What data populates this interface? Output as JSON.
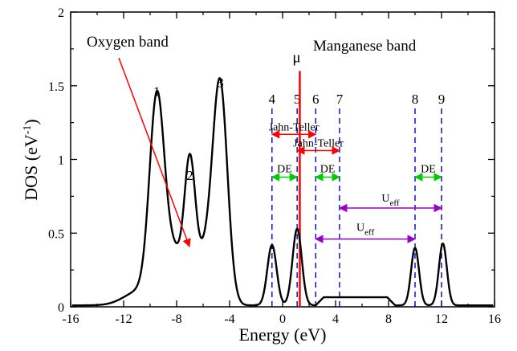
{
  "chart_data": {
    "type": "line",
    "xlabel": "Energy (eV)",
    "ylabel_main": "DOS (eV",
    "ylabel_sup": "-1",
    "ylabel_close": ")",
    "xlim": [
      -16,
      16
    ],
    "ylim": [
      0,
      2
    ],
    "xticks": [
      -16,
      -12,
      -8,
      -4,
      0,
      4,
      8,
      12,
      16
    ],
    "xtick_labels": [
      "-16",
      "-12",
      "-8",
      "-4",
      "0",
      "4",
      "8",
      "12",
      "16"
    ],
    "yticks": [
      0,
      0.5,
      1,
      1.5,
      2
    ],
    "ytick_labels": [
      "0",
      "0.5",
      "1",
      "1.5",
      "2"
    ],
    "series": [
      {
        "color": "#000000",
        "peaks": [
          {
            "x": -9.5,
            "h": 1.3,
            "w": 0.55
          },
          {
            "x": -10.7,
            "h": 0.1,
            "w": 1.2
          },
          {
            "x": -7.0,
            "h": 0.8,
            "w": 0.4
          },
          {
            "x": -8.2,
            "h": 0.35,
            "w": 0.8
          },
          {
            "x": -4.7,
            "h": 1.4,
            "w": 0.55
          },
          {
            "x": -5.8,
            "h": 0.35,
            "w": 0.8
          },
          {
            "x": -0.8,
            "h": 0.41,
            "w": 0.35
          },
          {
            "x": 1.1,
            "h": 0.52,
            "w": 0.35
          },
          {
            "x": 10.0,
            "h": 0.39,
            "w": 0.3
          },
          {
            "x": 12.1,
            "h": 0.42,
            "w": 0.3
          }
        ],
        "plateau": {
          "from": 2.5,
          "to": 8.5,
          "level": 0.055
        },
        "baseline": 0.01
      }
    ],
    "vlines": [
      {
        "label": "4",
        "x": -0.8
      },
      {
        "label": "5",
        "x": 1.1
      },
      {
        "label": "6",
        "x": 2.5
      },
      {
        "label": "7",
        "x": 4.3
      },
      {
        "label": "8",
        "x": 10.0
      },
      {
        "label": "9",
        "x": 12.0
      }
    ],
    "mu": {
      "label": "μ",
      "x": 1.3
    },
    "peak_labels": [
      {
        "label": "1",
        "x": -9.5,
        "y": 1.43
      },
      {
        "label": "2",
        "x": -7.0,
        "y": 0.86
      },
      {
        "label": "3",
        "x": -4.7,
        "y": 1.49
      }
    ],
    "annotations": {
      "oxygen_band": "Oxygen band",
      "manganese_band": "Manganese band",
      "jahn_teller_1": "Jahn-Teller",
      "jahn_teller_2": "Jahn-Teller",
      "de_1": "DE",
      "de_2": "DE",
      "de_3": "DE",
      "ueff_1_main": "U",
      "ueff_1_sub": "eff",
      "ueff_2_main": "U",
      "ueff_2_sub": "eff"
    },
    "arrows": {
      "jahn_teller_1": {
        "from": -0.8,
        "to": 2.5,
        "y": 1.17
      },
      "jahn_teller_2": {
        "from": 1.1,
        "to": 4.3,
        "y": 1.06
      },
      "de_1": {
        "from": -0.8,
        "to": 1.1,
        "y": 0.88
      },
      "de_2": {
        "from": 2.5,
        "to": 4.3,
        "y": 0.88
      },
      "de_3": {
        "from": 10.0,
        "to": 12.0,
        "y": 0.88
      },
      "ueff_1": {
        "from": 4.3,
        "to": 12.0,
        "y": 0.67
      },
      "ueff_2": {
        "from": 2.5,
        "to": 10.0,
        "y": 0.46
      }
    },
    "colors": {
      "curve": "#000000",
      "dashed": "#0000cc",
      "mu_line": "#ff0000",
      "jahn_teller": "#ff0000",
      "de": "#00cc00",
      "ueff": "#9900cc",
      "oxygen_arrow": "#ff0000"
    },
    "grid": false,
    "legend": "none"
  }
}
